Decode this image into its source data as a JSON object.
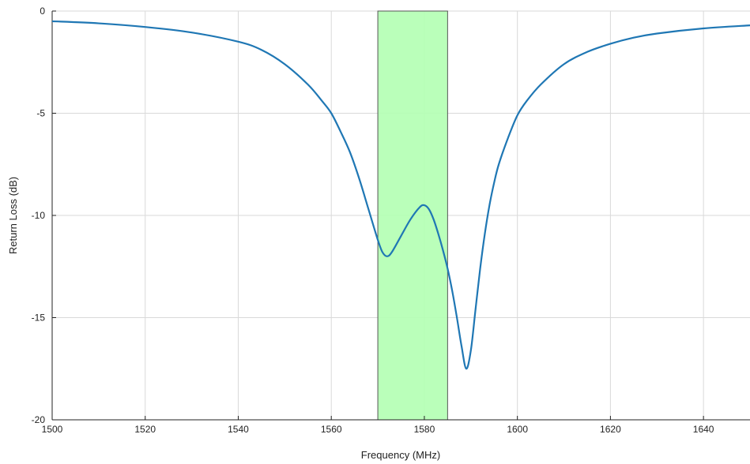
{
  "chart_data": {
    "type": "line",
    "title": "",
    "xlabel": "Frequency (MHz)",
    "ylabel": "Return Loss (dB)",
    "xlim": [
      1500,
      1650
    ],
    "ylim": [
      -20,
      0
    ],
    "xticks": [
      1500,
      1520,
      1540,
      1560,
      1580,
      1600,
      1620,
      1640
    ],
    "yticks": [
      0,
      -5,
      -10,
      -15,
      -20
    ],
    "grid": true,
    "line_color": "#1f77b4",
    "band_color": "#b3ffb3",
    "band": {
      "x_start": 1570,
      "x_end": 1585
    },
    "series": [
      {
        "points": [
          [
            1500,
            -0.5
          ],
          [
            1510,
            -0.6
          ],
          [
            1520,
            -0.78
          ],
          [
            1530,
            -1.05
          ],
          [
            1540,
            -1.5
          ],
          [
            1545,
            -1.9
          ],
          [
            1550,
            -2.6
          ],
          [
            1555,
            -3.6
          ],
          [
            1558,
            -4.4
          ],
          [
            1560,
            -5.0
          ],
          [
            1562,
            -5.9
          ],
          [
            1564,
            -6.9
          ],
          [
            1566,
            -8.2
          ],
          [
            1568,
            -9.7
          ],
          [
            1570,
            -11.2
          ],
          [
            1571,
            -11.8
          ],
          [
            1572,
            -12.0
          ],
          [
            1573,
            -11.8
          ],
          [
            1575,
            -11.0
          ],
          [
            1577,
            -10.2
          ],
          [
            1579,
            -9.6
          ],
          [
            1580,
            -9.5
          ],
          [
            1581,
            -9.7
          ],
          [
            1582,
            -10.2
          ],
          [
            1583,
            -10.9
          ],
          [
            1584,
            -11.7
          ],
          [
            1585,
            -12.6
          ],
          [
            1586,
            -13.7
          ],
          [
            1587,
            -15.0
          ],
          [
            1588,
            -16.4
          ],
          [
            1589,
            -17.5
          ],
          [
            1590,
            -16.6
          ],
          [
            1591,
            -14.6
          ],
          [
            1592,
            -12.6
          ],
          [
            1593,
            -10.9
          ],
          [
            1594,
            -9.5
          ],
          [
            1595,
            -8.4
          ],
          [
            1596,
            -7.5
          ],
          [
            1598,
            -6.2
          ],
          [
            1600,
            -5.1
          ],
          [
            1602,
            -4.4
          ],
          [
            1605,
            -3.6
          ],
          [
            1610,
            -2.6
          ],
          [
            1615,
            -2.0
          ],
          [
            1620,
            -1.6
          ],
          [
            1625,
            -1.3
          ],
          [
            1630,
            -1.1
          ],
          [
            1640,
            -0.85
          ],
          [
            1650,
            -0.7
          ]
        ]
      }
    ]
  }
}
